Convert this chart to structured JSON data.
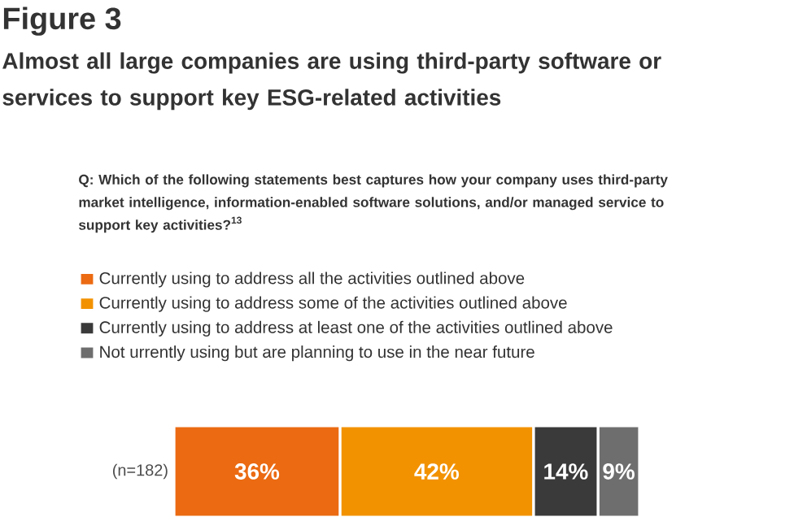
{
  "chart_data": {
    "type": "bar",
    "orientation": "horizontal",
    "stacked": true,
    "title": "Figure 3",
    "subtitle": "Almost all large companies are using third-party software or services to support key ESG-related activities",
    "annotations": [
      "Q: Which of the following statements best captures how your company uses third-party market intelligence, information-enabled software solutions, and/or managed service to support key activities?$^{13}$"
    ],
    "categories": [
      "(n=182)"
    ],
    "series": [
      {
        "name": "Currently using to address all the activities outlined above",
        "color": "#eb6a12",
        "values": [
          36
        ],
        "value_labels": [
          "36%"
        ]
      },
      {
        "name": "Currently using to address some of the activities outlined above",
        "color": "#f29200",
        "values": [
          42
        ],
        "value_labels": [
          "42%"
        ]
      },
      {
        "name": "Currently using to address at least one of the activities outlined above",
        "color": "#3a3a3a",
        "values": [
          14
        ],
        "value_labels": [
          "14%"
        ]
      },
      {
        "name": "Not urrently using but are planning to use in the near future",
        "color": "#6e6e6e",
        "values": [
          9
        ],
        "value_labels": [
          "9%"
        ]
      }
    ],
    "legend": "top left"
  }
}
